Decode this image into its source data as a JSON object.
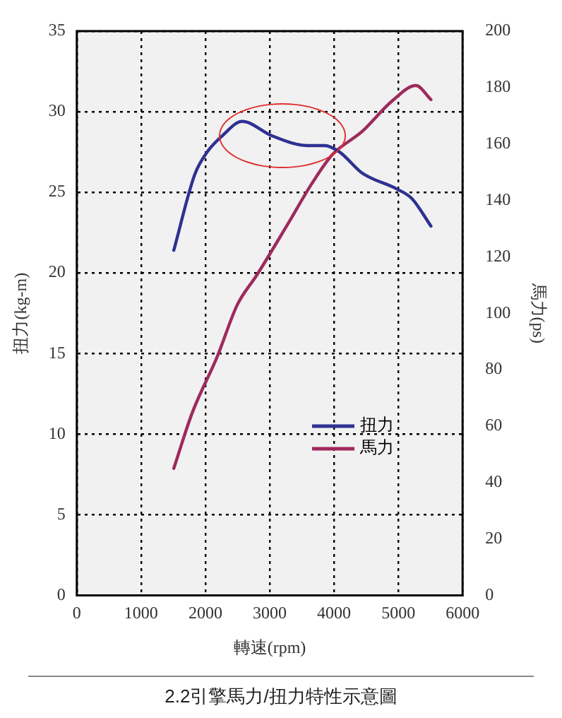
{
  "chart_data": {
    "type": "line",
    "xlabel": "轉速(rpm)",
    "ylabel": "扭力(kg-m)",
    "y2label": "馬力(ps)",
    "annotations": [
      "2.2引擎馬力/扭力特性示意圖"
    ],
    "series": [
      {
        "name": "扭力",
        "color": "#2e3192",
        "x": [
          1508,
          1834,
          2028,
          2261,
          2571,
          3037,
          3582,
          3853,
          4087,
          4436,
          4981,
          5214,
          5508
        ],
        "values": [
          21.4,
          26.1,
          27.5,
          28.5,
          29.4,
          28.5,
          27.9,
          27.9,
          27.5,
          26.2,
          25.2,
          24.6,
          22.9
        ]
      },
      {
        "name": "馬力",
        "color": "#9e2a5c",
        "axis": "y2",
        "x": [
          1508,
          1795,
          2184,
          2494,
          2805,
          3271,
          3660,
          3970,
          4436,
          4902,
          5275,
          5508
        ],
        "values": [
          45.0,
          64.7,
          84.6,
          102.9,
          113.7,
          131.2,
          146.1,
          156.1,
          164.4,
          175.2,
          180.7,
          175.7
        ]
      }
    ],
    "xlim": [
      0,
      6000
    ],
    "xticks": [
      0,
      1000,
      2000,
      3000,
      4000,
      5000,
      6000
    ],
    "ylim": [
      0,
      35
    ],
    "yticks": [
      0,
      5,
      10,
      15,
      20,
      25,
      30,
      35
    ],
    "y2lim": [
      0,
      200
    ],
    "y2ticks": [
      0,
      20,
      40,
      60,
      80,
      100,
      120,
      140,
      160,
      180,
      200
    ],
    "grid": true,
    "legend": "bottom",
    "marker": "none",
    "line_style": "solid"
  }
}
